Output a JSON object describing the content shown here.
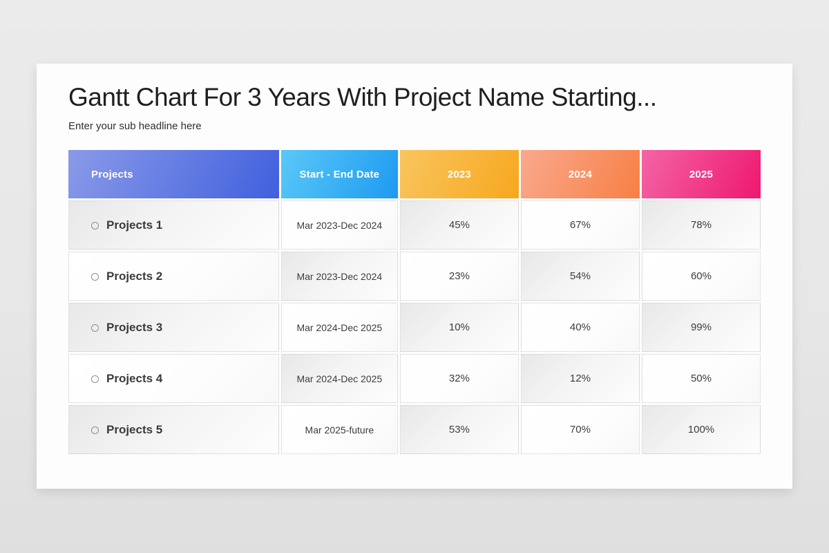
{
  "page": {
    "title": "Gantt Chart For 3 Years With Project Name Starting...",
    "subtitle": "Enter your sub headline here"
  },
  "table": {
    "headers": {
      "projects": "Projects",
      "date": "Start - End Date",
      "y2023": "2023",
      "y2024": "2024",
      "y2025": "2025"
    },
    "rows": [
      {
        "name": "Projects 1",
        "date": "Mar 2023-Dec 2024",
        "y2023": "45%",
        "y2024": "67%",
        "y2025": "78%"
      },
      {
        "name": "Projects 2",
        "date": "Mar 2023-Dec 2024",
        "y2023": "23%",
        "y2024": "54%",
        "y2025": "60%"
      },
      {
        "name": "Projects 3",
        "date": "Mar 2024-Dec 2025",
        "y2023": "10%",
        "y2024": "40%",
        "y2025": "99%"
      },
      {
        "name": "Projects 4",
        "date": "Mar 2024-Dec 2025",
        "y2023": "32%",
        "y2024": "12%",
        "y2025": "50%"
      },
      {
        "name": "Projects 5",
        "date": "Mar 2025-future",
        "y2023": "53%",
        "y2024": "70%",
        "y2025": "100%"
      }
    ]
  },
  "colors": {
    "header_gradients": {
      "projects": {
        "from": "#8a9ae8",
        "to": "#4060de"
      },
      "date": {
        "from": "#5ac8f8",
        "to": "#1e9af0"
      },
      "y2023": {
        "from": "#f9c55f",
        "to": "#f7a71f"
      },
      "y2024": {
        "from": "#f9a98d",
        "to": "#f87f45"
      },
      "y2025": {
        "from": "#f464a5",
        "to": "#ee186f"
      }
    }
  },
  "chart_data": {
    "type": "table",
    "title": "Gantt Chart For 3 Years With Project Name Starting...",
    "subtitle": "Enter your sub headline here",
    "columns": [
      "Projects",
      "Start - End Date",
      "2023",
      "2024",
      "2025"
    ],
    "rows": [
      [
        "Projects 1",
        "Mar 2023-Dec 2024",
        45,
        67,
        78
      ],
      [
        "Projects 2",
        "Mar 2023-Dec 2024",
        23,
        54,
        60
      ],
      [
        "Projects 3",
        "Mar 2024-Dec 2025",
        10,
        40,
        99
      ],
      [
        "Projects 4",
        "Mar 2024-Dec 2025",
        32,
        12,
        50
      ],
      [
        "Projects 5",
        "Mar 2025-future",
        53,
        70,
        100
      ]
    ],
    "value_unit": "%"
  }
}
